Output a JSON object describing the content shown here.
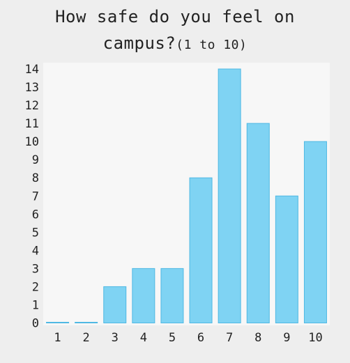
{
  "chart_data": {
    "type": "bar",
    "title_line1": "How safe do you feel on",
    "title_line2_main": "campus?",
    "title_line2_range": "(1 to 10)",
    "categories": [
      "1",
      "2",
      "3",
      "4",
      "5",
      "6",
      "7",
      "8",
      "9",
      "10"
    ],
    "values": [
      0,
      0,
      2,
      3,
      3,
      8,
      14,
      11,
      7,
      10
    ],
    "yticks": [
      0,
      1,
      2,
      3,
      4,
      5,
      6,
      7,
      8,
      9,
      10,
      11,
      12,
      13,
      14
    ],
    "ylim": [
      0,
      14
    ],
    "grid": false,
    "colors": {
      "bar_fill": "#7fd3f3",
      "bar_stroke": "#4fb8e3",
      "plot_bg": "#f7f7f7",
      "page_bg": "#eeeeee"
    }
  }
}
